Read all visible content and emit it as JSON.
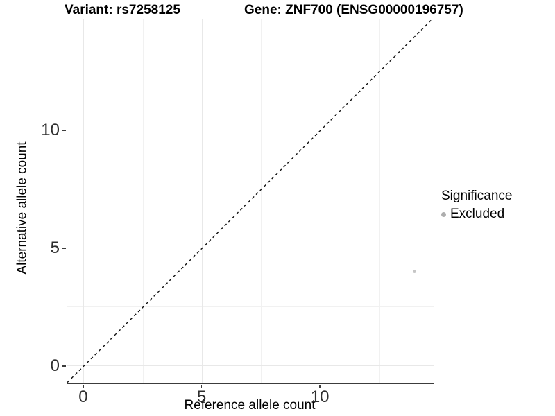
{
  "title": {
    "variant": "Variant: rs7258125",
    "gene": "Gene: ZNF700 (ENSG00000196757)"
  },
  "axes": {
    "x_label": "Reference allele count",
    "y_label": "Alternative allele count"
  },
  "legend": {
    "title": "Significance",
    "items": [
      {
        "label": "Excluded",
        "color": "#aeaeae"
      }
    ]
  },
  "colors": {
    "axis_line": "#3c3c3c",
    "grid_major": "#e8e8e8",
    "grid_minor": "#f1f1f1",
    "tick_label": "#2e2e2e",
    "reference_line": "#111111",
    "point": "#c6c6c6"
  },
  "chart_data": {
    "type": "scatter",
    "title": "Variant: rs7258125    Gene: ZNF700 (ENSG00000196757)",
    "xlabel": "Reference allele count",
    "ylabel": "Alternative allele count",
    "xlim": [
      -0.7,
      14.8
    ],
    "ylim": [
      -0.74,
      14.7
    ],
    "x_ticks": [
      0,
      5,
      10
    ],
    "y_ticks": [
      0,
      5,
      10
    ],
    "x_minor_ticks": [
      2.5,
      7.5,
      12.5
    ],
    "y_minor_ticks": [
      2.5,
      7.5,
      12.5
    ],
    "grid": true,
    "legend_position": "right",
    "series": [
      {
        "name": "Excluded",
        "points": [
          {
            "x": 14,
            "y": 4
          }
        ],
        "color": "#c6c6c6",
        "marker_radius": 2.5
      }
    ],
    "reference_line": {
      "equation": "y = x",
      "style": "dashed",
      "color": "#111111",
      "width": 1.4
    }
  }
}
